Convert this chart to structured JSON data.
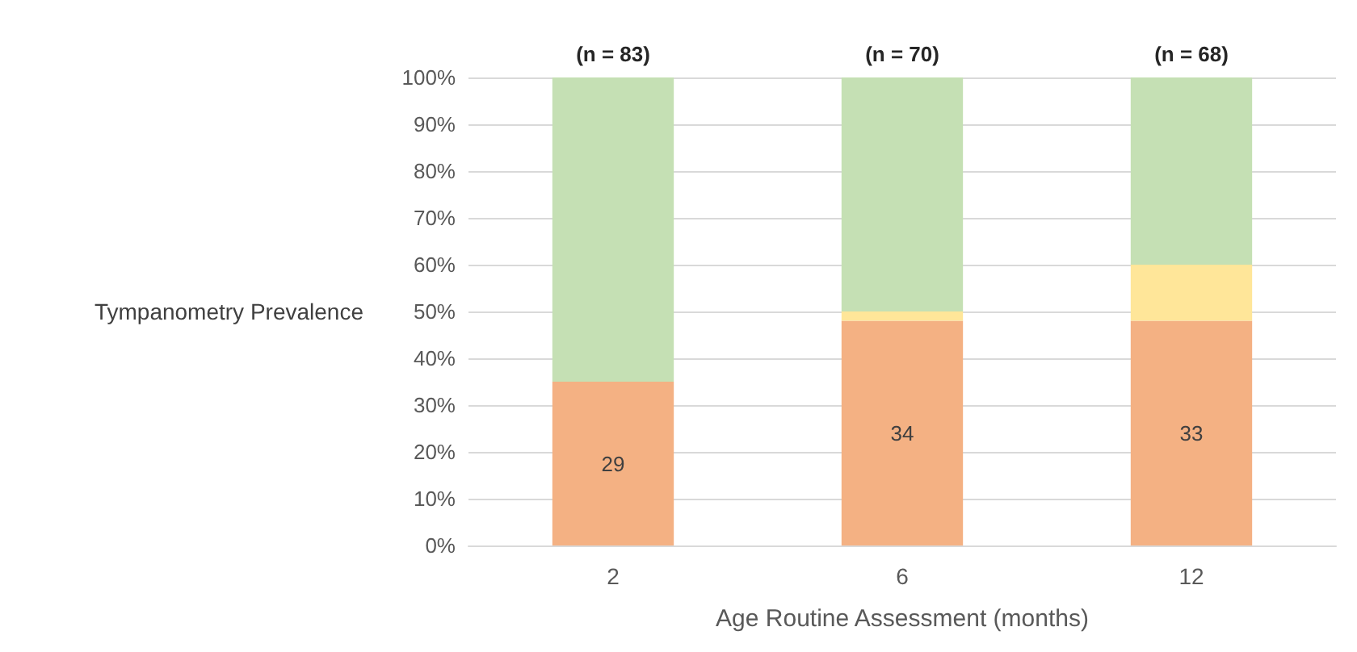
{
  "chart_data": {
    "type": "bar",
    "stacked": true,
    "xlabel": "Age Routine Assessment (months)",
    "ylabel": "Tympanometry Prevalence",
    "categories": [
      "2",
      "6",
      "12"
    ],
    "series": [
      {
        "color": "#f4b183",
        "values": [
          35,
          48,
          48
        ]
      },
      {
        "color": "#ffe699",
        "values": [
          null,
          2,
          12
        ]
      },
      {
        "color": "#c5e0b4",
        "values": [
          65,
          50,
          40
        ]
      }
    ],
    "ylim": [
      0,
      100
    ],
    "yticks": [
      {
        "value": 0,
        "label": "0%"
      },
      {
        "value": 10,
        "label": "10%"
      },
      {
        "value": 20,
        "label": "20%"
      },
      {
        "value": 30,
        "label": "30%"
      },
      {
        "value": 40,
        "label": "40%"
      },
      {
        "value": 50,
        "label": "50%"
      },
      {
        "value": 60,
        "label": "60%"
      },
      {
        "value": 70,
        "label": "70%"
      },
      {
        "value": 80,
        "label": "80%"
      },
      {
        "value": 90,
        "label": "90%"
      },
      {
        "value": 100,
        "label": "100%"
      }
    ],
    "grid": "y",
    "annotations": [
      {
        "text": "(n = 83)",
        "x": "2",
        "y": 100
      },
      {
        "text": "(n = 70)",
        "x": "6",
        "y": 100
      },
      {
        "text": "(n = 68)",
        "x": "12",
        "y": 100
      },
      "29",
      "34",
      "33"
    ]
  }
}
